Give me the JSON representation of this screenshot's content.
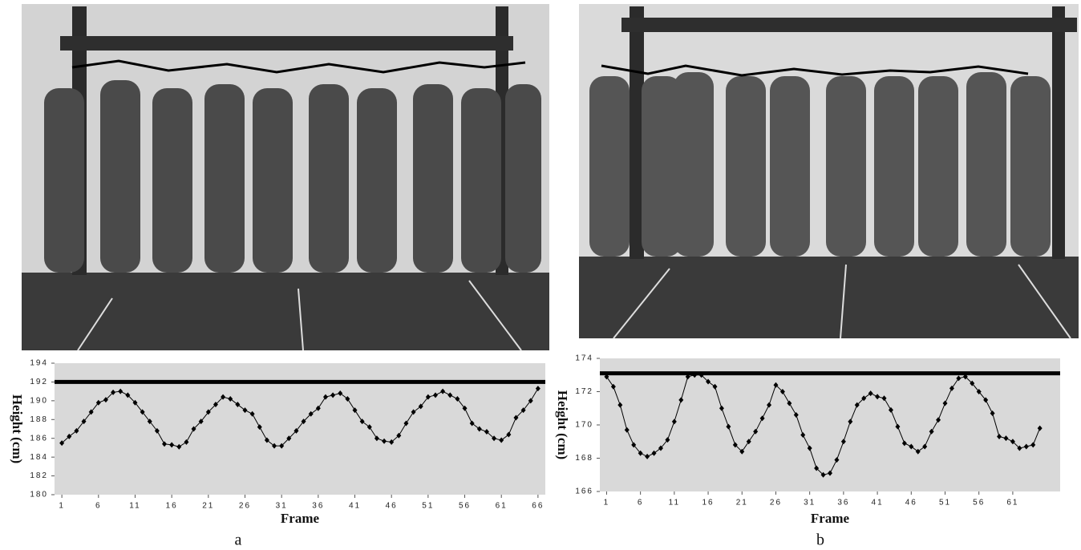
{
  "chart_data": [
    {
      "type": "line",
      "xlabel": "Frame",
      "ylabel": "Height (cm)",
      "caption": "a",
      "x": [
        1,
        2,
        3,
        4,
        5,
        6,
        7,
        8,
        9,
        10,
        11,
        12,
        13,
        14,
        15,
        16,
        17,
        18,
        19,
        20,
        21,
        22,
        23,
        24,
        25,
        26,
        27,
        28,
        29,
        30,
        31,
        32,
        33,
        34,
        35,
        36,
        37,
        38,
        39,
        40,
        41,
        42,
        43,
        44,
        45,
        46,
        47,
        48,
        49,
        50,
        51,
        52,
        53,
        54,
        55,
        56,
        57,
        58,
        59,
        60,
        61,
        62,
        63,
        64,
        65,
        66
      ],
      "series": [
        {
          "color": "#000000",
          "values": [
            185.5,
            186.2,
            186.8,
            187.8,
            188.8,
            189.8,
            190.1,
            190.9,
            191.0,
            190.6,
            189.8,
            188.8,
            187.8,
            186.8,
            185.4,
            185.3,
            185.1,
            185.6,
            187.0,
            187.8,
            188.8,
            189.6,
            190.4,
            190.2,
            189.6,
            189.0,
            188.6,
            187.2,
            185.8,
            185.2,
            185.2,
            186.0,
            186.8,
            187.8,
            188.6,
            189.2,
            190.4,
            190.6,
            190.8,
            190.2,
            189.0,
            187.8,
            187.2,
            186.0,
            185.7,
            185.6,
            186.3,
            187.6,
            188.8,
            189.4,
            190.4,
            190.6,
            191.0,
            190.6,
            190.2,
            189.2,
            187.6,
            187.0,
            186.7,
            186.0,
            185.8,
            186.4,
            188.2,
            189.0,
            190.0,
            191.3
          ]
        }
      ],
      "hline": 192,
      "xlim": [
        0,
        67
      ],
      "xticks": [
        1,
        6,
        11,
        16,
        21,
        26,
        31,
        36,
        41,
        46,
        51,
        56,
        61,
        66
      ],
      "ylim": [
        180,
        194
      ],
      "yticks": [
        180,
        182,
        184,
        186,
        188,
        190,
        192,
        194
      ],
      "background": "#d9d9d9"
    },
    {
      "type": "line",
      "xlabel": "Frame",
      "ylabel": "Height (cm)",
      "caption": "b",
      "x": [
        1,
        2,
        3,
        4,
        5,
        6,
        7,
        8,
        9,
        10,
        11,
        12,
        13,
        14,
        15,
        16,
        17,
        18,
        19,
        20,
        21,
        22,
        23,
        24,
        25,
        26,
        27,
        28,
        29,
        30,
        31,
        32,
        33,
        34,
        35,
        36,
        37,
        38,
        39,
        40,
        41,
        42,
        43,
        44,
        45,
        46,
        47,
        48,
        49,
        50,
        51,
        52,
        53,
        54,
        55,
        56,
        57,
        58,
        59,
        60,
        61,
        62,
        63,
        64,
        65
      ],
      "series": [
        {
          "color": "#000000",
          "values": [
            172.9,
            172.3,
            171.2,
            169.7,
            168.8,
            168.3,
            168.1,
            168.3,
            168.6,
            169.1,
            170.2,
            171.5,
            172.9,
            173.0,
            173.0,
            172.6,
            172.3,
            171.0,
            169.9,
            168.8,
            168.4,
            169.0,
            169.6,
            170.4,
            171.2,
            172.4,
            172.0,
            171.3,
            170.6,
            169.4,
            168.6,
            167.4,
            167.0,
            167.1,
            167.9,
            169.0,
            170.2,
            171.2,
            171.6,
            171.9,
            171.7,
            171.6,
            170.9,
            169.9,
            168.9,
            168.7,
            168.4,
            168.7,
            169.6,
            170.3,
            171.3,
            172.2,
            172.8,
            172.9,
            172.5,
            172.0,
            171.5,
            170.7,
            169.3,
            169.2,
            169.0,
            168.6,
            168.7,
            168.8,
            169.8
          ]
        }
      ],
      "hline": 173.1,
      "xlim": [
        0,
        68
      ],
      "xticks": [
        1,
        6,
        11,
        16,
        21,
        26,
        31,
        36,
        41,
        46,
        51,
        56,
        61
      ],
      "ylim": [
        166,
        174
      ],
      "yticks": [
        166,
        168,
        170,
        172,
        174
      ],
      "background": "#d9d9d9"
    }
  ]
}
